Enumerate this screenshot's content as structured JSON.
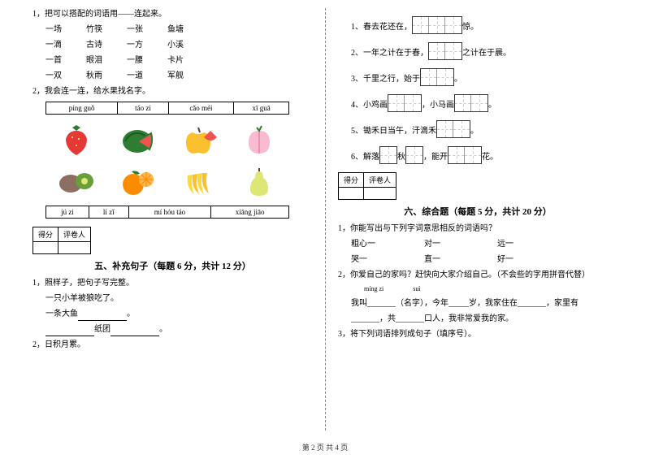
{
  "left": {
    "q1_title": "1，把可以搭配的词语用——连起来。",
    "pairs": [
      [
        "一场",
        "竹筷",
        "一张",
        "鱼塘"
      ],
      [
        "一滴",
        "古诗",
        "一方",
        "小溪"
      ],
      [
        "一首",
        "眼泪",
        "一腰",
        "卡片"
      ],
      [
        "一双",
        "秋雨",
        "一道",
        "军舰"
      ]
    ],
    "q2_title": "2，我会连一连，给水果找名字。",
    "pinyin_top": [
      "píng guǒ",
      "táo zi",
      "cǎo méi",
      "xī guā"
    ],
    "pinyin_bot": [
      "jú zi",
      "lí zǐ",
      "mí hóu táo",
      "xiāng jiāo"
    ],
    "score_labels": [
      "得分",
      "评卷人"
    ],
    "sec5_title": "五、补充句子（每题 6 分，共计 12 分）",
    "q5_1": "1，照样子，把句子写完整。",
    "q5_1a": "一只小羊被狼吃了。",
    "q5_1b": "一条大鱼",
    "q5_1c": "纸团",
    "q5_2": "2，日积月累。"
  },
  "right": {
    "fills": [
      {
        "num": "1、",
        "pre": "春去花还在，",
        "boxes": 3,
        "post": "惊。"
      },
      {
        "num": "2、",
        "pre": "一年之计在于春，",
        "boxes": 2,
        "post": "之计在于晨。"
      },
      {
        "num": "3、",
        "pre": "千里之行，始于",
        "boxes": 2,
        "post": "。"
      },
      {
        "num": "4、",
        "pre": "小鸡画",
        "boxes": 2,
        "mid": "，小马画",
        "boxes2": 2,
        "post": "。"
      },
      {
        "num": "5、",
        "pre": "锄禾日当午，汗滴禾",
        "boxes": 2,
        "post": "。"
      },
      {
        "num": "6、",
        "pre": "解落",
        "boxes": 1,
        "mid": "秋",
        "boxes2": 1,
        "mid2": "，能开",
        "boxes3": 2,
        "post": "花。"
      }
    ],
    "score_labels": [
      "得分",
      "评卷人"
    ],
    "sec6_title": "六、综合题（每题 5 分，共计 20 分）",
    "q6_1": "1，你能写出与下列字词意思相反的词语吗？",
    "q6_1_items": [
      [
        "粗心一",
        "对一",
        "远一"
      ],
      [
        "哭一",
        "直一",
        "好一"
      ]
    ],
    "q6_2": "2，你爱自己的家吗？赶快向大家介绍自己。（不会些的字用拼音代替）",
    "q6_2_line1_labels": [
      "míng zi",
      "suì"
    ],
    "q6_2_line1": "我叫_______（名字），今年_____岁，我家住在_______，家里有",
    "q6_2_line2": "_______，共_______口人，我非常爱我的家。",
    "q6_3": "3，将下列词语排列成句子（填序号）。"
  },
  "footer": "第 2 页 共 4 页",
  "colors": {
    "strawberry": "#e53935",
    "watermelon": "#2e7d32",
    "watermelon_inner": "#ef5350",
    "apple": "#fbc02d",
    "apple_red": "#ef5350",
    "peach": "#f8bbd0",
    "kiwi": "#689f38",
    "orange": "#fb8c00",
    "banana": "#fdd835",
    "pear": "#dce775"
  }
}
